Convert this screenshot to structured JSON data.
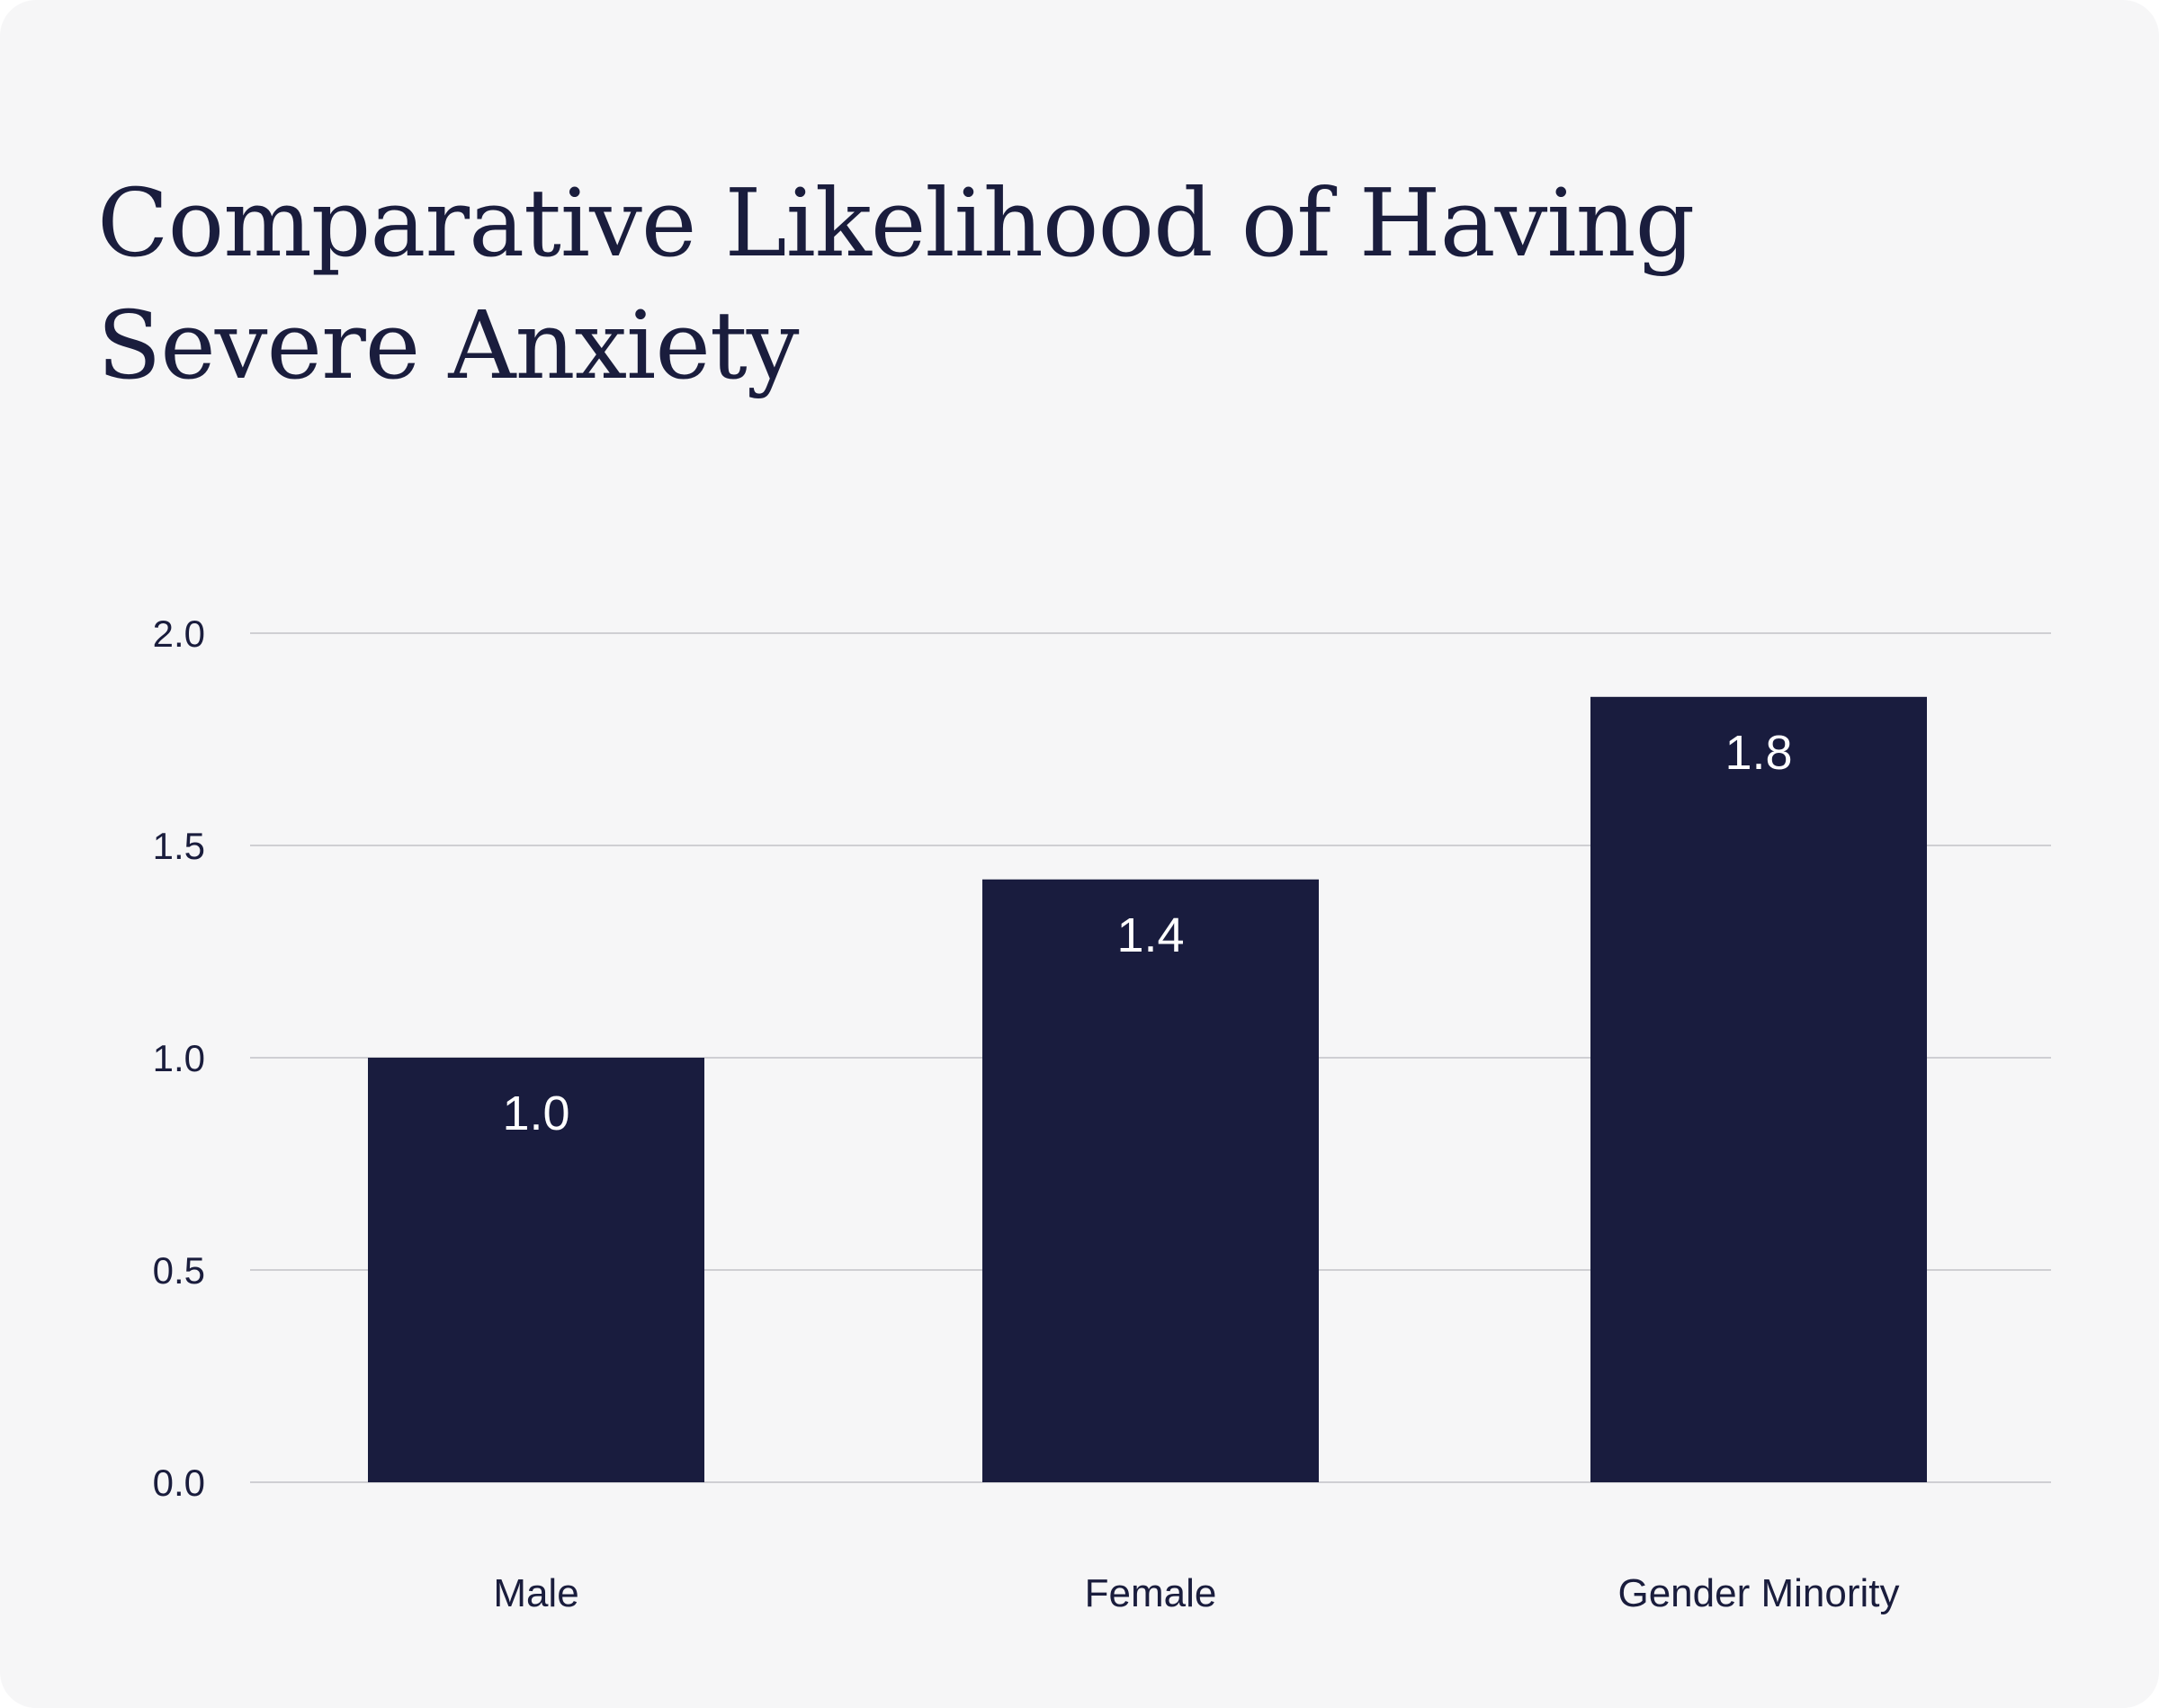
{
  "chart_data": {
    "type": "bar",
    "title": "Comparative Likelihood of Having Severe Anxiety",
    "categories": [
      "Male",
      "Female",
      "Gender Minority"
    ],
    "values": [
      1.0,
      1.42,
      1.85
    ],
    "data_labels": [
      "1.0",
      "1.4",
      "1.8"
    ],
    "xlabel": "",
    "ylabel": "",
    "ylim": [
      0,
      2.0
    ],
    "yticks": [
      0.0,
      0.5,
      1.0,
      1.5,
      2.0
    ],
    "ytick_labels": [
      "0.0",
      "0.5",
      "1.0",
      "1.5",
      "2.0"
    ],
    "grid": true,
    "bar_color": "#191c3e",
    "text_color": "#1a1d3d",
    "label_color": "#ffffff",
    "grid_color": "#cfcfd3",
    "background": "#f6f6f7"
  }
}
